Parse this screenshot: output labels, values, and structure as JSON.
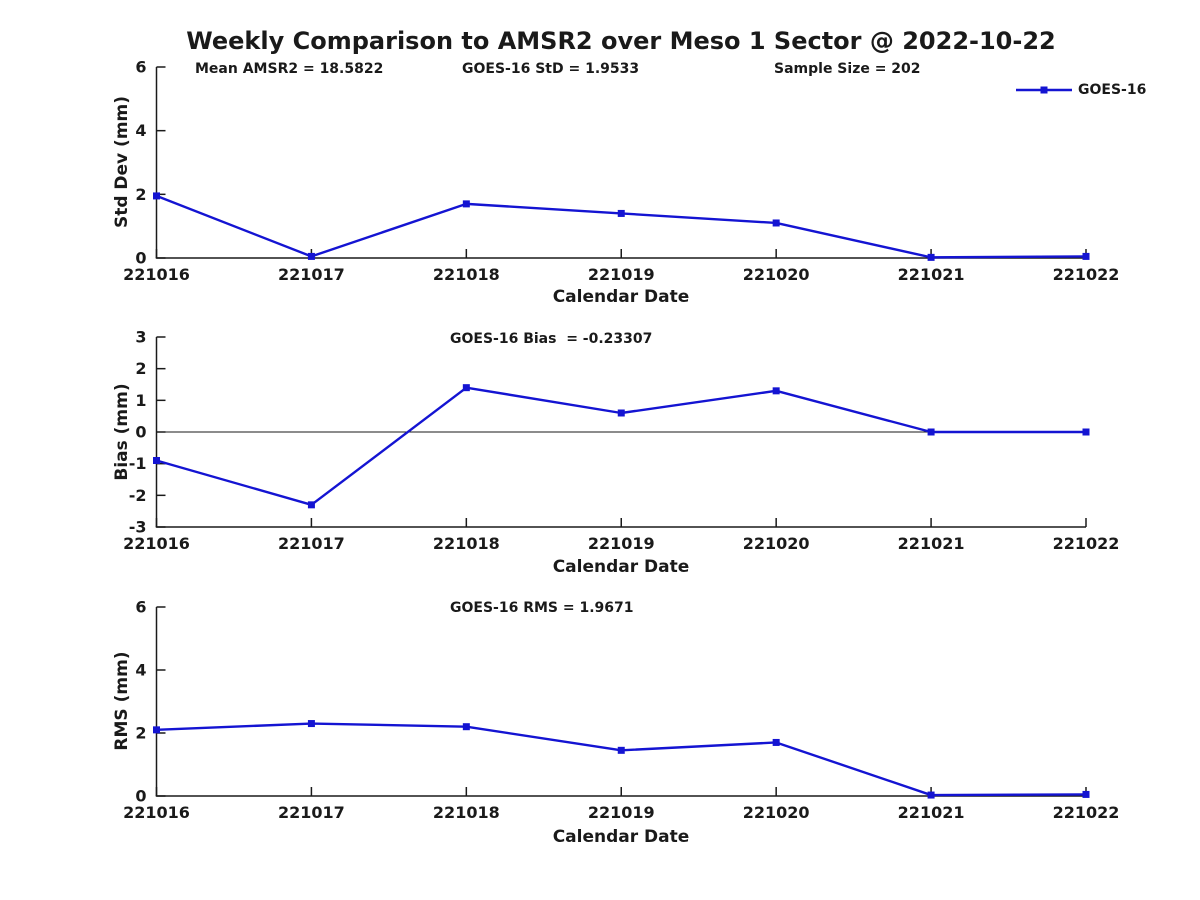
{
  "title": "Weekly Comparison to AMSR2 over Meso 1 Sector @ 2022-10-22",
  "legend": {
    "label": "GOES-16",
    "position": "top-right"
  },
  "colors": {
    "series": "#1414d2",
    "axis": "#1a1a1a",
    "text": "#1a1a1a",
    "background": "#ffffff"
  },
  "chart_data": [
    {
      "type": "line",
      "name": "std-dev-subplot",
      "categories": [
        "221016",
        "221017",
        "221018",
        "221019",
        "221020",
        "221021",
        "221022"
      ],
      "series": [
        {
          "name": "GOES-16",
          "values": [
            1.95,
            0.05,
            1.7,
            1.4,
            1.1,
            0.02,
            0.05
          ]
        }
      ],
      "ylabel": "Std Dev (mm)",
      "xlabel": "Calendar Date",
      "ylim": [
        0,
        6
      ],
      "yticks": [
        0,
        2,
        4,
        6
      ],
      "zero_line": false,
      "grid": false,
      "marker": "square",
      "annotations": [
        "Mean AMSR2 = 18.5822",
        "GOES-16 StD = 1.9533",
        "Sample Size = 202"
      ]
    },
    {
      "type": "line",
      "name": "bias-subplot",
      "categories": [
        "221016",
        "221017",
        "221018",
        "221019",
        "221020",
        "221021",
        "221022"
      ],
      "series": [
        {
          "name": "GOES-16",
          "values": [
            -0.9,
            -2.3,
            1.4,
            0.6,
            1.3,
            0.0,
            0.0
          ]
        }
      ],
      "ylabel": "Bias (mm)",
      "xlabel": "Calendar Date",
      "ylim": [
        -3,
        3
      ],
      "yticks": [
        -3,
        -2,
        -1,
        0,
        1,
        2,
        3
      ],
      "zero_line": true,
      "grid": false,
      "marker": "square",
      "annotations": [
        "GOES-16 Bias  = -0.23307"
      ]
    },
    {
      "type": "line",
      "name": "rms-subplot",
      "categories": [
        "221016",
        "221017",
        "221018",
        "221019",
        "221020",
        "221021",
        "221022"
      ],
      "series": [
        {
          "name": "GOES-16",
          "values": [
            2.1,
            2.3,
            2.2,
            1.45,
            1.7,
            0.03,
            0.05
          ]
        }
      ],
      "ylabel": "RMS (mm)",
      "xlabel": "Calendar Date",
      "ylim": [
        0,
        6
      ],
      "yticks": [
        0,
        2,
        4,
        6
      ],
      "zero_line": false,
      "grid": false,
      "marker": "square",
      "annotations": [
        "GOES-16 RMS = 1.9671"
      ]
    }
  ]
}
